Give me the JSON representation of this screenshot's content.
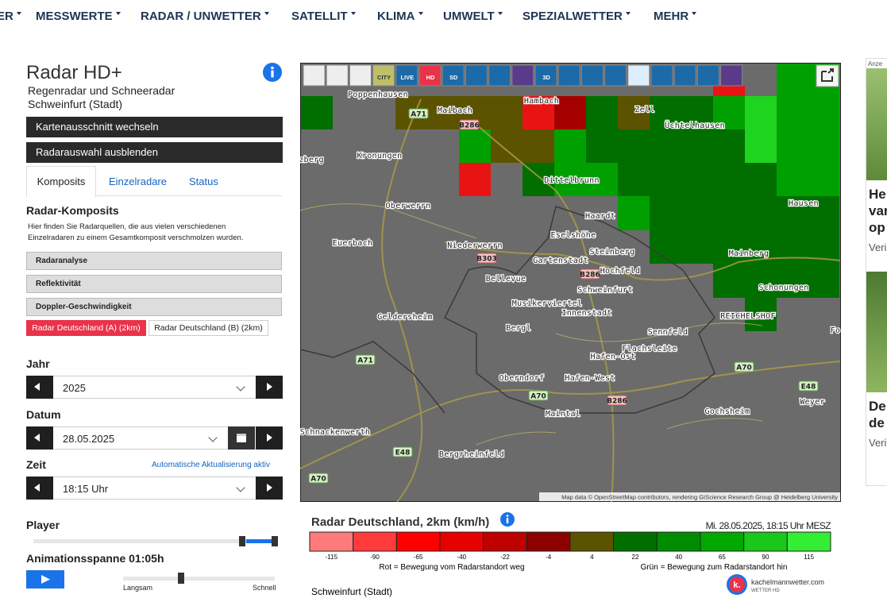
{
  "nav": [
    "ER",
    "MESSWERTE",
    "RADAR / UNWETTER",
    "SATELLIT",
    "KLIMA",
    "UMWELT",
    "SPEZIALWETTER",
    "MEHR"
  ],
  "panel": {
    "title": "Radar HD+",
    "subtitle": "Regenradar und Schneeradar",
    "location": "Schweinfurt (Stadt)",
    "buttons": [
      "Kartenausschnitt wechseln",
      "Radarauswahl ausblenden"
    ],
    "tabs": [
      "Komposits",
      "Einzelradare",
      "Status"
    ],
    "section_title": "Radar-Komposits",
    "description": [
      "Hier finden Sie Radarquellen, die aus vielen verschiedenen",
      "Einzelradaren zu einem Gesamtkomposit verschmolzen wurden."
    ],
    "composites": [
      "Radaranalyse",
      "Reflektivität",
      "Doppler-Geschwindigkeit"
    ],
    "radars": [
      "Radar Deutschland (A) (2km)",
      "Radar Deutschland (B) (2km)"
    ],
    "year_label": "Jahr",
    "year": "2025",
    "date_label": "Datum",
    "date": "28.05.2025",
    "time_label": "Zeit",
    "auto_update": "Automatische Aktualisierung aktiv",
    "time": "18:15 Uhr",
    "player_label": "Player",
    "span_label": "Animationsspanne 01:05h",
    "slow": "Langsam",
    "fast": "Schnell"
  },
  "toolbar": [
    "CITY",
    "LIVE",
    "HD",
    "SD",
    "3D"
  ],
  "map": {
    "places": [
      "Poppenhausen",
      "Maibach",
      "Hambach",
      "Zell",
      "Üchtelhausen",
      "zberg",
      "Kronungen",
      "Dittelbrunn",
      "Hausen",
      "Oberwerrn",
      "Haardt",
      "Eselshöhe",
      "Euerbach",
      "Niederwerrn",
      "Steinberg",
      "Mainberg",
      "Gartenstadt",
      "Hochfeld",
      "Bellevue",
      "Schweinfurt",
      "Schonungen",
      "Musikerviertel",
      "Innenstadt",
      "REICHELSHOF",
      "Geldersheim",
      "Bergl",
      "Sennfeld",
      "Fo",
      "Flachsleite",
      "Hafen-Ost",
      "Oberndorf",
      "Hafen-West",
      "Gochsheim",
      "Weyer",
      "Maintal",
      "Schnackenwerth",
      "Bergrheinfeld"
    ],
    "roads": [
      "A71",
      "B286",
      "B303",
      "B286",
      "A71",
      "A70",
      "B286",
      "A70",
      "E48",
      "E48",
      "A70"
    ],
    "attribution": "Map data © OpenStreetMap contributors, rendering GIScience Research Group @ Heidelberg University"
  },
  "legend": {
    "title": "Radar Deutschland, 2km (km/h)",
    "timestamp": "Mi. 28.05.2025, 18:15 Uhr MESZ",
    "values": [
      -115,
      -90,
      -65,
      -40,
      -22,
      -4,
      4,
      22,
      40,
      65,
      90,
      115
    ],
    "red_caption": "Rot = Bewegung vom Radarstandort weg",
    "green_caption": "Grün = Bewegung zum Radarstandort hin",
    "location": "Schweinfurt (Stadt)"
  },
  "logo": {
    "mark": "k.",
    "name": "kachelmannwetter.com",
    "tagline": "WETTER HD"
  },
  "ad": {
    "label": "Anze",
    "headline1": [
      "He",
      "var",
      "op"
    ],
    "source1": "Veri",
    "headline2": [
      "De",
      "de"
    ],
    "source2": "Veri"
  }
}
